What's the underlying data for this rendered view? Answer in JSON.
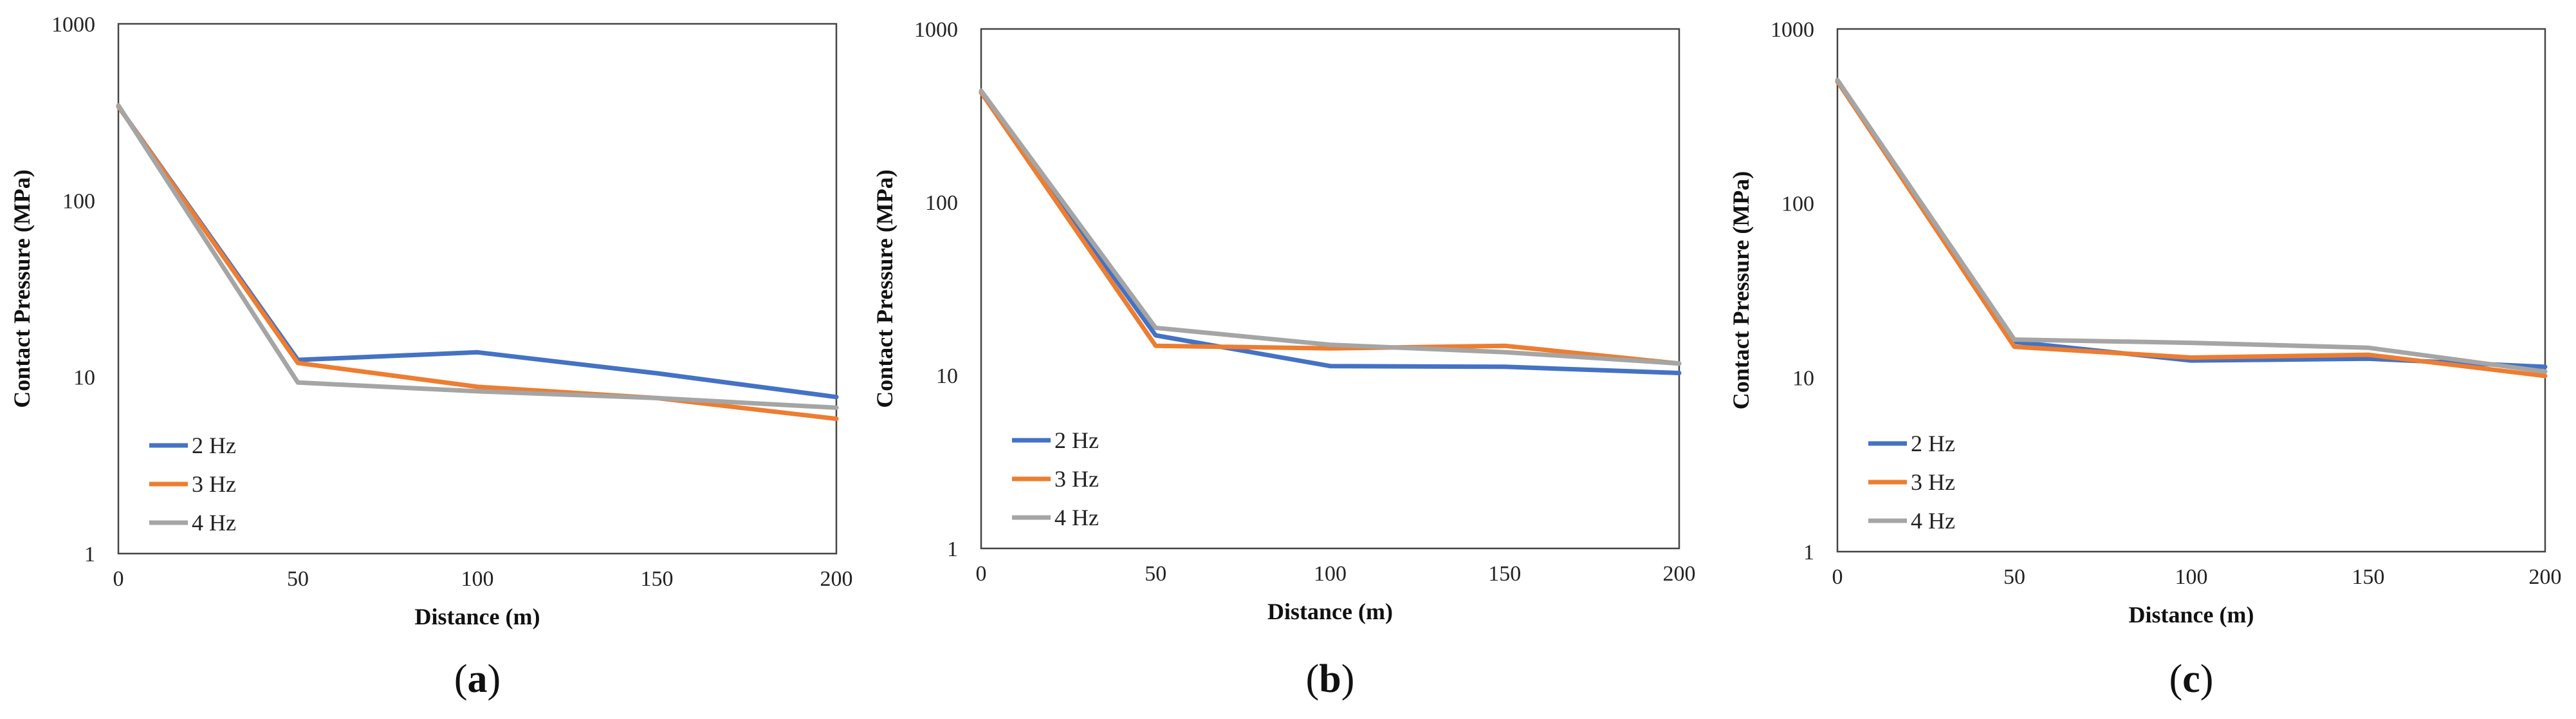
{
  "colors": {
    "2 Hz": "#4472C4",
    "3 Hz": "#ED7D31",
    "4 Hz": "#A5A5A5"
  },
  "chart_data": [
    {
      "type": "line",
      "panel_label": "a",
      "xlabel": "Distance (m)",
      "ylabel": "Contact Pressure (MPa)",
      "yscale": "log",
      "ylim": [
        1,
        1000
      ],
      "xlim": [
        0,
        200
      ],
      "x_ticks": [
        "0",
        "50",
        "100",
        "150",
        "200"
      ],
      "y_ticks": [
        "1",
        "10",
        "100",
        "1000"
      ],
      "x": [
        0,
        50,
        100,
        150,
        200
      ],
      "series": [
        {
          "name": "2 Hz",
          "values": [
            340,
            12.5,
            13.8,
            10.5,
            7.7
          ]
        },
        {
          "name": "3 Hz",
          "values": [
            340,
            12.0,
            8.8,
            7.6,
            5.8
          ]
        },
        {
          "name": "4 Hz",
          "values": [
            345,
            9.3,
            8.3,
            7.6,
            6.7
          ]
        }
      ],
      "legend": "bottom-left"
    },
    {
      "type": "line",
      "panel_label": "b",
      "xlabel": "Distance (m)",
      "ylabel": "Contact Pressure (MPa)",
      "yscale": "log",
      "ylim": [
        1,
        1000
      ],
      "xlim": [
        0,
        200
      ],
      "x_ticks": [
        "0",
        "50",
        "100",
        "150",
        "200"
      ],
      "y_ticks": [
        "1",
        "10",
        "100",
        "1000"
      ],
      "x": [
        0,
        50,
        100,
        150,
        200
      ],
      "series": [
        {
          "name": "2 Hz",
          "values": [
            430,
            17.0,
            11.3,
            11.2,
            10.3
          ]
        },
        {
          "name": "3 Hz",
          "values": [
            430,
            14.8,
            14.3,
            14.8,
            11.7
          ]
        },
        {
          "name": "4 Hz",
          "values": [
            440,
            18.8,
            15.0,
            13.6,
            11.7
          ]
        }
      ],
      "legend": "bottom-left"
    },
    {
      "type": "line",
      "panel_label": "c",
      "xlabel": "Distance (m)",
      "ylabel": "Contact Pressure (MPa)",
      "yscale": "log",
      "ylim": [
        1,
        1000
      ],
      "xlim": [
        0,
        200
      ],
      "x_ticks": [
        "0",
        "50",
        "100",
        "150",
        "200"
      ],
      "y_ticks": [
        "1",
        "10",
        "100",
        "1000"
      ],
      "x": [
        0,
        50,
        100,
        150,
        200
      ],
      "series": [
        {
          "name": "2 Hz",
          "values": [
            500,
            16.0,
            12.5,
            12.8,
            11.5
          ]
        },
        {
          "name": "3 Hz",
          "values": [
            500,
            15.0,
            13.0,
            13.5,
            10.2
          ]
        },
        {
          "name": "4 Hz",
          "values": [
            510,
            16.5,
            15.8,
            14.8,
            10.8
          ]
        }
      ],
      "legend": "bottom-left"
    }
  ]
}
